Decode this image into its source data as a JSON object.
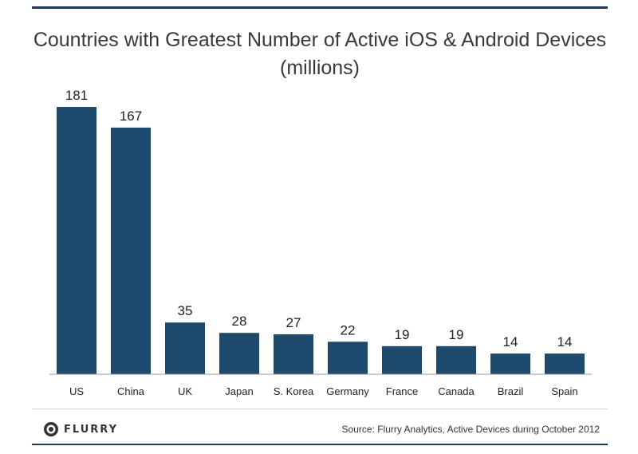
{
  "chart_data": {
    "type": "bar",
    "title": "Countries with Greatest Number of Active iOS & Android Devices",
    "subtitle": "(millions)",
    "categories": [
      "US",
      "China",
      "UK",
      "Japan",
      "S. Korea",
      "Germany",
      "France",
      "Canada",
      "Brazil",
      "Spain"
    ],
    "values": [
      181,
      167,
      35,
      28,
      27,
      22,
      19,
      19,
      14,
      14
    ],
    "data_labels": [
      "181",
      "167",
      "35",
      "28",
      "27",
      "22",
      "19",
      "19",
      "14",
      "14"
    ],
    "ylim": [
      0,
      181
    ],
    "grid": false,
    "legend": "none",
    "bar_color": "#1e4a6e"
  },
  "footer": {
    "brand": "FLURRY",
    "logo_icon": "flurry-logo-icon",
    "source": "Source: Flurry Analytics, Active Devices during October 2012"
  },
  "colors": {
    "frame": "#1f3a57",
    "title": "#3a3a3a",
    "bar": "#1e4a6e"
  }
}
